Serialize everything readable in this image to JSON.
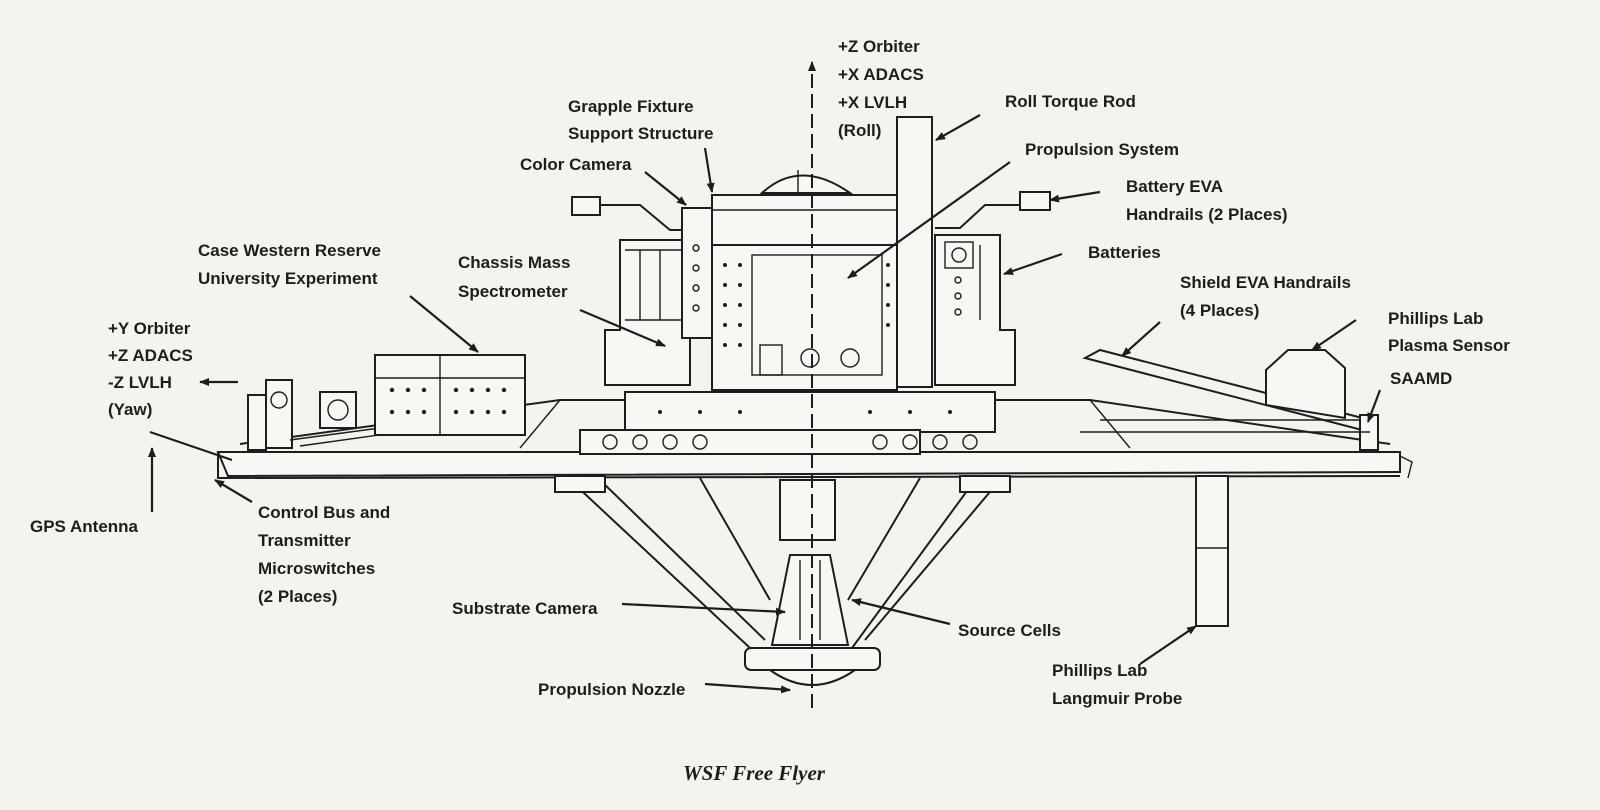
{
  "diagram": {
    "caption": "WSF Free Flyer",
    "axis_top": [
      "+Z Orbiter",
      "+X ADACS",
      "+X LVLH",
      "(Roll)"
    ],
    "axis_left": [
      "+Y Orbiter",
      "+Z ADACS",
      "-Z LVLH",
      "(Yaw)"
    ],
    "labels": {
      "grapple": [
        "Grapple Fixture",
        "Support Structure"
      ],
      "color_camera": "Color Camera",
      "roll_torque_rod": "Roll Torque Rod",
      "propulsion_system": "Propulsion System",
      "battery_eva": [
        "Battery EVA",
        "Handrails (2 Places)"
      ],
      "batteries": "Batteries",
      "case_western": [
        "Case Western Reserve",
        "University Experiment"
      ],
      "chassis_mass": [
        "Chassis Mass",
        "Spectrometer"
      ],
      "shield_eva": [
        "Shield EVA Handrails",
        "(4 Places)"
      ],
      "plasma_sensor": [
        "Phillips Lab",
        "Plasma Sensor"
      ],
      "saamd": "SAAMD",
      "gps_antenna": "GPS Antenna",
      "control_bus": [
        "Control Bus and",
        "Transmitter",
        "Microswitches",
        "(2 Places)"
      ],
      "substrate_camera": "Substrate Camera",
      "source_cells": "Source Cells",
      "langmuir": [
        "Phillips Lab",
        "Langmuir Probe"
      ],
      "propulsion_nozzle": "Propulsion Nozzle"
    }
  }
}
